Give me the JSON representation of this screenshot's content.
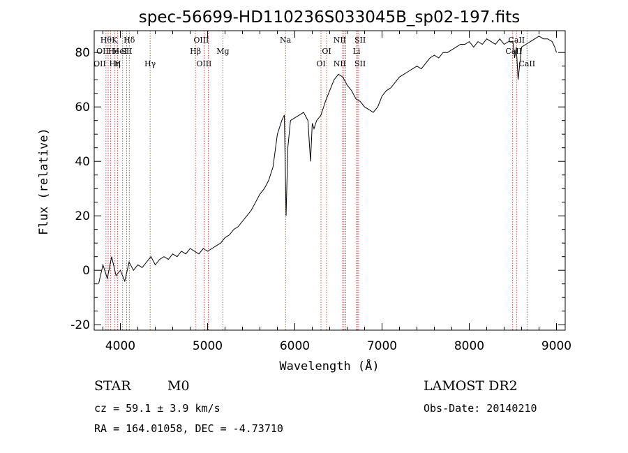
{
  "chart_data": {
    "type": "line",
    "title": "spec-56699-HD110236S033045B_sp02-197.fits",
    "xlabel": "Wavelength (Å)",
    "ylabel": "Flux (relative)",
    "xlim": [
      3700,
      9100
    ],
    "ylim": [
      -22,
      88
    ],
    "xticks": [
      4000,
      5000,
      6000,
      7000,
      8000,
      9000
    ],
    "yticks": [
      -20,
      0,
      20,
      40,
      60,
      80
    ],
    "grid": false,
    "line_color": "#000000",
    "marker_color": "#b22222",
    "series": [
      {
        "x": [
          3750,
          3800,
          3850,
          3900,
          3950,
          4000,
          4050,
          4100,
          4150,
          4200,
          4250,
          4300,
          4350,
          4400,
          4450,
          4500,
          4550,
          4600,
          4650,
          4700,
          4750,
          4800,
          4850,
          4900,
          4950,
          5000,
          5050,
          5100,
          5150,
          5200,
          5250,
          5300,
          5350,
          5400,
          5450,
          5500,
          5550,
          5600,
          5650,
          5700,
          5750,
          5800,
          5850,
          5880,
          5900,
          5920,
          5950,
          6000,
          6050,
          6100,
          6150,
          6180,
          6200,
          6220,
          6250,
          6300,
          6350,
          6400,
          6450,
          6500,
          6550,
          6600,
          6650,
          6700,
          6750,
          6800,
          6850,
          6900,
          6950,
          7000,
          7050,
          7100,
          7150,
          7200,
          7250,
          7300,
          7350,
          7400,
          7450,
          7500,
          7550,
          7600,
          7650,
          7700,
          7750,
          7800,
          7850,
          7900,
          7950,
          8000,
          8050,
          8100,
          8150,
          8200,
          8250,
          8300,
          8350,
          8400,
          8450,
          8500,
          8520,
          8540,
          8560,
          8600,
          8650,
          8700,
          8750,
          8800,
          8850,
          8900,
          8950,
          8980,
          9000
        ],
        "y": [
          -5,
          2,
          -3,
          5,
          -2,
          0,
          -4,
          3,
          0,
          2,
          1,
          3,
          5,
          2,
          4,
          5,
          4,
          6,
          5,
          7,
          6,
          8,
          7,
          6,
          8,
          7,
          8,
          9,
          10,
          12,
          13,
          15,
          16,
          18,
          20,
          22,
          25,
          28,
          30,
          33,
          38,
          50,
          55,
          57,
          20,
          45,
          55,
          56,
          57,
          58,
          55,
          40,
          54,
          52,
          55,
          57,
          62,
          66,
          70,
          72,
          71,
          68,
          66,
          63,
          62,
          60,
          59,
          58,
          60,
          64,
          66,
          67,
          69,
          71,
          72,
          73,
          74,
          75,
          74,
          76,
          78,
          79,
          78,
          80,
          80,
          81,
          82,
          83,
          83,
          84,
          82,
          84,
          83,
          85,
          84,
          83,
          85,
          83,
          84,
          84,
          78,
          82,
          70,
          82,
          83,
          84,
          85,
          86,
          85,
          85,
          84,
          82,
          80
        ]
      }
    ],
    "line_markers": [
      {
        "wl": 3835,
        "labels": [
          {
            "text": "Hθ",
            "row": 0,
            "dx": 0
          }
        ]
      },
      {
        "wl": 3860,
        "labels": [
          {
            "text": "OII",
            "row": 1,
            "dx": -8
          },
          {
            "text": "OII",
            "row": 2,
            "dx": -12
          }
        ]
      },
      {
        "wl": 3889,
        "labels": [
          {
            "text": "Hη",
            "row": 2,
            "dx": 6
          }
        ]
      },
      {
        "wl": 3934,
        "labels": [
          {
            "text": "K",
            "row": 0,
            "dx": 0
          }
        ]
      },
      {
        "wl": 3969,
        "labels": [
          {
            "text": "He",
            "row": 1,
            "dx": -6
          },
          {
            "text": "H",
            "row": 2,
            "dx": 0
          }
        ]
      },
      {
        "wl": 4026,
        "labels": [
          {
            "text": "HeI",
            "row": 1,
            "dx": -4
          }
        ]
      },
      {
        "wl": 4072,
        "labels": [
          {
            "text": "SII",
            "row": 1,
            "dx": 0
          }
        ]
      },
      {
        "wl": 4102,
        "labels": [
          {
            "text": "Hδ",
            "row": 0,
            "dx": 0
          }
        ]
      },
      {
        "wl": 4341,
        "labels": [
          {
            "text": "Hγ",
            "row": 2,
            "dx": 0
          }
        ]
      },
      {
        "wl": 4861,
        "labels": [
          {
            "text": "Hβ",
            "row": 1,
            "dx": 0
          }
        ]
      },
      {
        "wl": 4959,
        "labels": [
          {
            "text": "OIII",
            "row": 0,
            "dx": -4
          },
          {
            "text": "OIII",
            "row": 2,
            "dx": 0
          }
        ]
      },
      {
        "wl": 5007,
        "labels": []
      },
      {
        "wl": 5175,
        "labels": [
          {
            "text": "Mg",
            "row": 1,
            "dx": 0
          }
        ]
      },
      {
        "wl": 5893,
        "labels": [
          {
            "text": "Na",
            "row": 0,
            "dx": 0
          }
        ]
      },
      {
        "wl": 6300,
        "labels": [
          {
            "text": "OI",
            "row": 2,
            "dx": 0
          }
        ]
      },
      {
        "wl": 6364,
        "labels": [
          {
            "text": "OI",
            "row": 1,
            "dx": 0
          }
        ]
      },
      {
        "wl": 6548,
        "labels": []
      },
      {
        "wl": 6563,
        "labels": [
          {
            "text": "NII",
            "row": 0,
            "dx": -6
          },
          {
            "text": "NII",
            "row": 2,
            "dx": -6
          }
        ]
      },
      {
        "wl": 6584,
        "labels": []
      },
      {
        "wl": 6708,
        "labels": [
          {
            "text": "Li",
            "row": 1,
            "dx": 0
          }
        ]
      },
      {
        "wl": 6717,
        "labels": [
          {
            "text": "SII",
            "row": 0,
            "dx": 4
          },
          {
            "text": "SII",
            "row": 2,
            "dx": 4
          }
        ]
      },
      {
        "wl": 6731,
        "labels": []
      },
      {
        "wl": 8498,
        "labels": []
      },
      {
        "wl": 8542,
        "labels": [
          {
            "text": "CaII",
            "row": 0,
            "dx": 0
          },
          {
            "text": "CaII",
            "row": 1,
            "dx": -4
          }
        ]
      },
      {
        "wl": 8662,
        "labels": [
          {
            "text": "CaII",
            "row": 2,
            "dx": 0
          }
        ]
      }
    ]
  },
  "footer": {
    "class_label": "STAR",
    "subclass": "M0",
    "survey": "LAMOST DR2",
    "cz_line": "cz = 59.1 ± 3.9 km/s",
    "obs_date": "Obs-Date: 20140210",
    "coords": "RA = 164.01058, DEC =  -4.73710"
  }
}
